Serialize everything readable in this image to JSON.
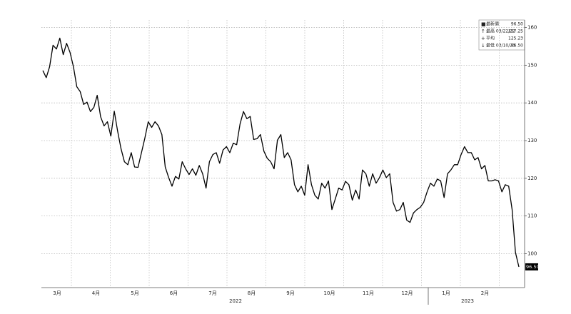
{
  "chart_data": {
    "type": "line",
    "months": [
      "3月",
      "4月",
      "5月",
      "6月",
      "7月",
      "8月",
      "9月",
      "10月",
      "11月",
      "12月",
      "1月",
      "2月"
    ],
    "years": [
      "2022",
      "2023"
    ],
    "values": [
      148.6,
      146.7,
      149.6,
      155.3,
      154.3,
      157.2,
      152.8,
      155.8,
      153.4,
      149.6,
      144.3,
      143,
      139.6,
      140.2,
      137.7,
      138.8,
      142,
      136.3,
      133.9,
      135,
      131.2,
      137.8,
      132.5,
      127.8,
      124.4,
      123.6,
      126.8,
      123,
      122.9,
      126.8,
      130.6,
      135,
      133.5,
      135,
      133.9,
      131.6,
      123,
      120.2,
      117.9,
      120.5,
      119.8,
      124.4,
      122.5,
      121,
      122.5,
      120.8,
      123.4,
      121.2,
      117.4,
      124.4,
      126.3,
      126.8,
      124,
      127.5,
      128.4,
      126.8,
      129.3,
      128.9,
      134.4,
      137.7,
      135.8,
      136.4,
      130.3,
      130.5,
      131.6,
      127.2,
      125.3,
      124.4,
      122.5,
      130.1,
      131.6,
      125.5,
      126.8,
      124.9,
      118.3,
      116.4,
      117.9,
      115.5,
      123.6,
      118.3,
      115.5,
      114.5,
      118.7,
      117.4,
      119.3,
      111.7,
      114.5,
      117.4,
      116.9,
      119.2,
      118.3,
      114.2,
      116.9,
      114.5,
      122.2,
      121.2,
      117.9,
      121.2,
      118.7,
      120.2,
      122.2,
      120.2,
      121.2,
      113.6,
      111.3,
      111.7,
      113.6,
      108.9,
      108.3,
      110.8,
      111.7,
      112.3,
      113.6,
      116.4,
      118.7,
      117.9,
      119.8,
      119.3,
      114.9,
      121.2,
      122.2,
      123.6,
      123.6,
      126.3,
      128.4,
      126.8,
      126.8,
      124.9,
      125.5,
      122.5,
      123.4,
      119.3,
      119.3,
      119.6,
      119.3,
      116.4,
      118.3,
      117.9,
      111.7,
      100.3,
      96.5
    ],
    "color": "#000000",
    "ylim": [
      91,
      162
    ],
    "yticks": [
      100,
      110,
      120,
      130,
      140,
      150,
      160
    ],
    "grid": true,
    "last_label": "96.50",
    "legend": [
      {
        "name": "最新價",
        "value_label": "96.50"
      },
      {
        "name": "最高 03/22/22",
        "value_label": "157.25"
      },
      {
        "name": "平均",
        "value_label": "125.23"
      },
      {
        "name": "最低 03/10/23",
        "value_label": "96.50"
      }
    ]
  }
}
